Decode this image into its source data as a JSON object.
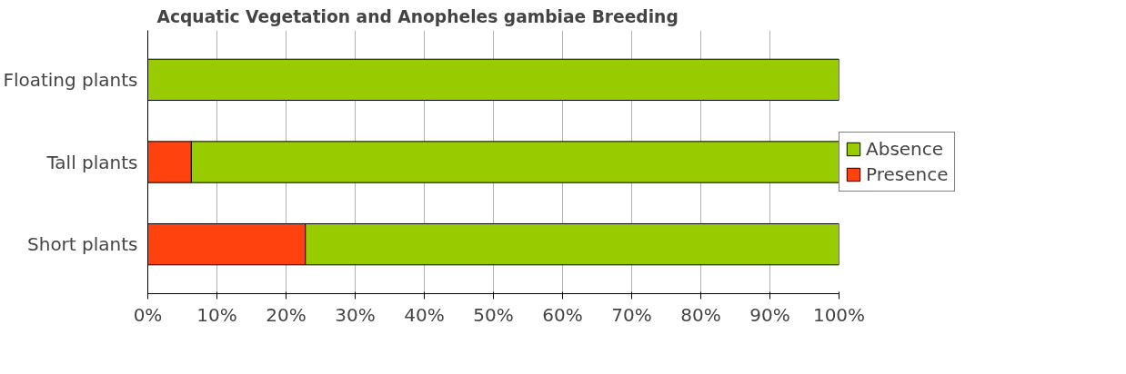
{
  "chart_data": {
    "type": "bar",
    "orientation": "horizontal",
    "stacked": true,
    "title": "Acquatic Vegetation and Anopheles gambiae Breeding",
    "categories": [
      "Floating plants",
      "Tall plants",
      "Short plants"
    ],
    "series": [
      {
        "name": "Presence",
        "color": "#ff420e",
        "values": [
          0,
          6.3,
          22.8
        ]
      },
      {
        "name": "Absence",
        "color": "#99cc00",
        "values": [
          100,
          93.7,
          77.2
        ]
      }
    ],
    "xlim": [
      0,
      100
    ],
    "xticks": [
      {
        "value": 0,
        "label": "0%"
      },
      {
        "value": 10,
        "label": "10%"
      },
      {
        "value": 20,
        "label": "20%"
      },
      {
        "value": 30,
        "label": "30%"
      },
      {
        "value": 40,
        "label": "40%"
      },
      {
        "value": 50,
        "label": "50%"
      },
      {
        "value": 60,
        "label": "60%"
      },
      {
        "value": 70,
        "label": "70%"
      },
      {
        "value": 80,
        "label": "80%"
      },
      {
        "value": 90,
        "label": "90%"
      },
      {
        "value": 100,
        "label": "100%"
      }
    ],
    "grid": "x",
    "legend": "right"
  }
}
